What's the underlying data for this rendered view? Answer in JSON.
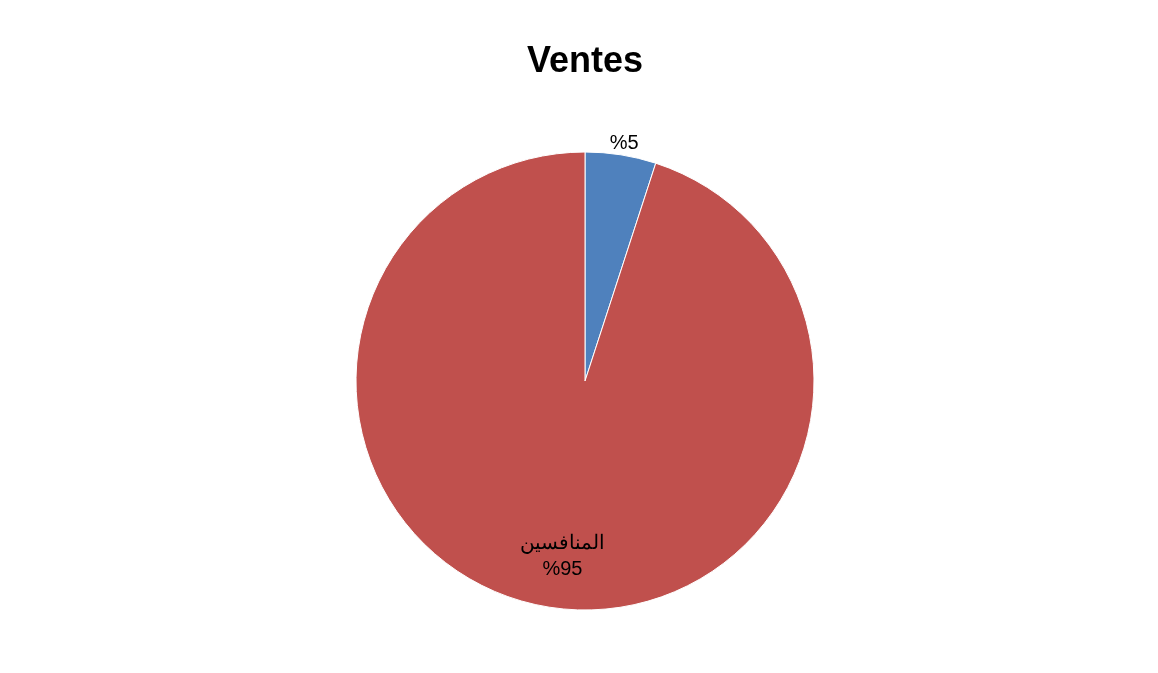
{
  "chart_data": {
    "type": "pie",
    "title": "Ventes",
    "categories": [
      null,
      "المنافسين"
    ],
    "values": [
      5,
      95
    ],
    "colors": [
      "#4f81bd",
      "#c0504d"
    ],
    "value_labels": [
      "%5",
      "%95"
    ]
  }
}
